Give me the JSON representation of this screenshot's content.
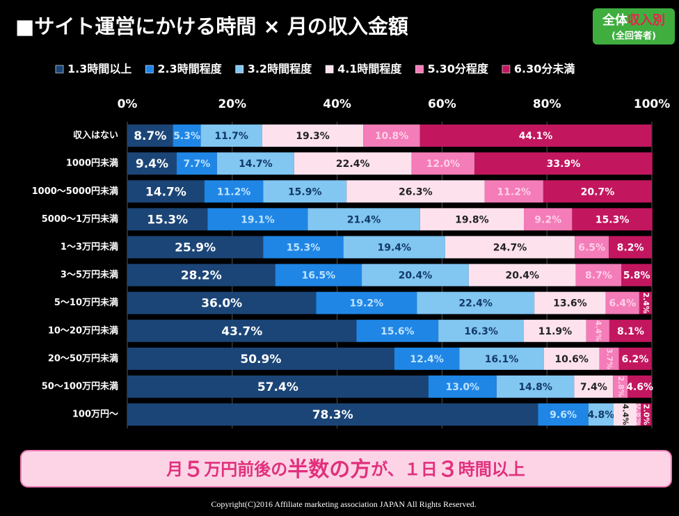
{
  "chart_data": {
    "type": "stacked_barh",
    "title": "■サイト運営にかける時間 × 月の収入金額",
    "badge": {
      "main": "全体",
      "accent": "収入別",
      "sub": "(全回答者)"
    },
    "categories": [
      "収入はない",
      "1000円未満",
      "1000～5000円未満",
      "5000～1万円未満",
      "1～3万円未満",
      "3～5万円未満",
      "5～10万円未満",
      "10～20万円未満",
      "20～50万円未満",
      "50～100万円未満",
      "100万円～"
    ],
    "series": [
      {
        "name": "1.3時間以上",
        "color": "#1b4577",
        "label_color": "#ffffff",
        "values": [
          8.7,
          9.4,
          14.7,
          15.3,
          25.9,
          28.2,
          36.0,
          43.7,
          50.9,
          57.4,
          78.3
        ],
        "value_labels": [
          "8.7%",
          "9.4%",
          "14.7%",
          "15.3%",
          "25.9%",
          "28.2%",
          "36.0%",
          "43.7%",
          "50.9%",
          "57.4%",
          "78.3%"
        ]
      },
      {
        "name": "2.3時間程度",
        "color": "#1f86e6",
        "label_color": "#bfe3ff",
        "values": [
          5.3,
          7.7,
          11.2,
          19.1,
          15.3,
          16.5,
          19.2,
          15.6,
          12.4,
          13.0,
          9.6
        ],
        "value_labels": [
          "5.3%",
          "7.7%",
          "11.2%",
          "19.1%",
          "15.3%",
          "16.5%",
          "19.2%",
          "15.6%",
          "12.4%",
          "13.0%",
          "9.6%"
        ]
      },
      {
        "name": "3.2時間程度",
        "color": "#82c6f2",
        "label_color": "#123a66",
        "values": [
          11.7,
          14.7,
          15.9,
          21.4,
          19.4,
          20.4,
          22.4,
          16.3,
          16.1,
          14.8,
          4.8
        ],
        "value_labels": [
          "11.7%",
          "14.7%",
          "15.9%",
          "21.4%",
          "19.4%",
          "20.4%",
          "22.4%",
          "16.3%",
          "16.1%",
          "14.8%",
          "4.8%"
        ]
      },
      {
        "name": "4.1時間程度",
        "color": "#fde2ee",
        "label_color": "#222222",
        "values": [
          19.3,
          22.4,
          26.3,
          19.8,
          24.7,
          20.4,
          13.6,
          11.9,
          10.6,
          7.4,
          4.4
        ],
        "value_labels": [
          "19.3%",
          "22.4%",
          "26.3%",
          "19.8%",
          "24.7%",
          "20.4%",
          "13.6%",
          "11.9%",
          "10.6%",
          "7.4%",
          "4.4%"
        ]
      },
      {
        "name": "5.30分程度",
        "color": "#f47cb8",
        "label_color": "#ffd0e8",
        "values": [
          10.8,
          12.0,
          11.2,
          9.2,
          6.5,
          8.7,
          6.4,
          4.4,
          3.7,
          2.8,
          0.8
        ],
        "value_labels": [
          "10.8%",
          "12.0%",
          "11.2%",
          "9.2%",
          "6.5%",
          "8.7%",
          "6.4%",
          "4.4%",
          "3.7%",
          "2.8%",
          "0.8%"
        ]
      },
      {
        "name": "6.30分未満",
        "color": "#c2175f",
        "label_color": "#ffffff",
        "values": [
          44.1,
          33.9,
          20.7,
          15.3,
          8.2,
          5.8,
          2.4,
          8.1,
          6.2,
          4.6,
          2.0
        ],
        "value_labels": [
          "44.1%",
          "33.9%",
          "20.7%",
          "15.3%",
          "8.2%",
          "5.8%",
          "2.4%",
          "8.1%",
          "6.2%",
          "4.6%",
          "2.0%"
        ]
      }
    ],
    "xlim": [
      0,
      100
    ],
    "xticks": [
      {
        "value": 0,
        "label": "0%"
      },
      {
        "value": 20,
        "label": "20%"
      },
      {
        "value": 40,
        "label": "40%"
      },
      {
        "value": 60,
        "label": "60%"
      },
      {
        "value": 80,
        "label": "80%"
      },
      {
        "value": 100,
        "label": "100%"
      }
    ],
    "grid": true,
    "legend": "top",
    "banner": [
      "月",
      "５",
      "万円前後の",
      "半数の方",
      "が、１日",
      "３",
      "時間以上"
    ],
    "copyright": "Copyright(C)2016  Affiliate marketing  association JAPAN  All Rights Reserved."
  }
}
